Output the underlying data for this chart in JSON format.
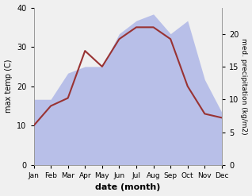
{
  "months": [
    "Jan",
    "Feb",
    "Mar",
    "Apr",
    "May",
    "Jun",
    "Jul",
    "Aug",
    "Sep",
    "Oct",
    "Nov",
    "Dec"
  ],
  "temp": [
    10,
    15,
    17,
    29,
    25,
    32,
    35,
    35,
    32,
    20,
    13,
    12
  ],
  "precip": [
    10,
    10,
    14,
    15,
    15,
    20,
    22,
    23,
    20,
    22,
    13,
    8
  ],
  "temp_color": "#993333",
  "precip_fill_color": "#b8bfe8",
  "xlabel": "date (month)",
  "ylabel_left": "max temp (C)",
  "ylabel_right": "med. precipitation (kg/m2)",
  "ylim_left": [
    0,
    40
  ],
  "ylim_right": [
    0,
    24
  ],
  "yticks_left": [
    0,
    10,
    20,
    30,
    40
  ],
  "yticks_right": [
    0,
    5,
    10,
    15,
    20
  ]
}
